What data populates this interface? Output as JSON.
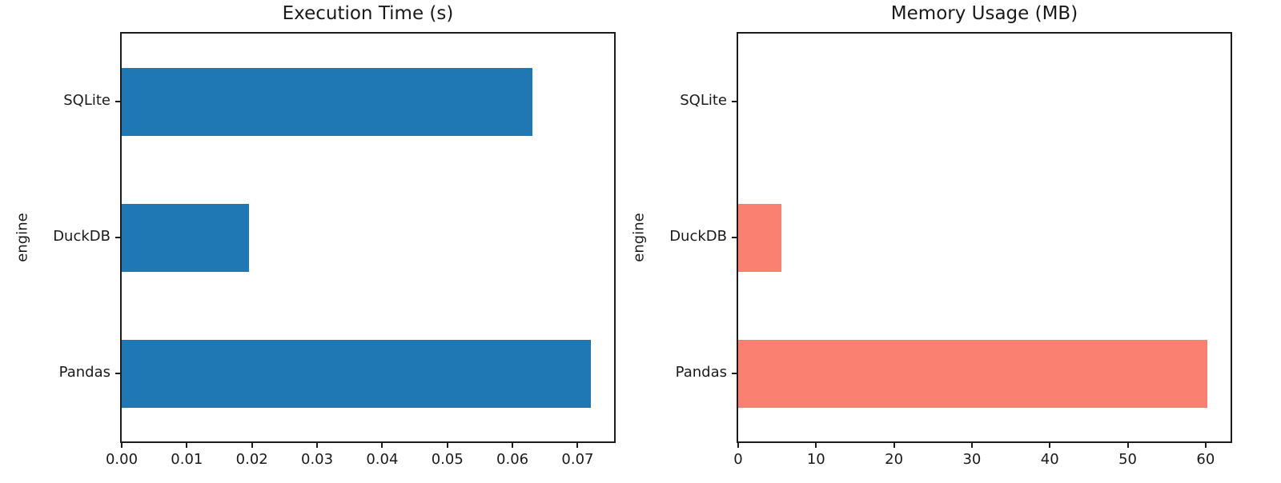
{
  "figure": {
    "background_color": "#ffffff",
    "text_color": "#1a1a1a",
    "spine_color": "#1c1c1c"
  },
  "chart_data": [
    {
      "type": "bar",
      "orientation": "horizontal",
      "title": "Execution Time (s)",
      "xlabel": "",
      "ylabel": "engine",
      "categories": [
        "SQLite",
        "DuckDB",
        "Pandas"
      ],
      "values": [
        0.063,
        0.0196,
        0.072
      ],
      "xlim": [
        0,
        0.0756
      ],
      "xticks": [
        0,
        0.01,
        0.02,
        0.03,
        0.04,
        0.05,
        0.06,
        0.07
      ],
      "xtick_labels": [
        "0.00",
        "0.01",
        "0.02",
        "0.03",
        "0.04",
        "0.05",
        "0.06",
        "0.07"
      ],
      "bar_color": "#1f77b4",
      "grid": false,
      "legend": "none"
    },
    {
      "type": "bar",
      "orientation": "horizontal",
      "title": "Memory Usage (MB)",
      "xlabel": "",
      "ylabel": "engine",
      "categories": [
        "SQLite",
        "DuckDB",
        "Pandas"
      ],
      "values": [
        0,
        5.5,
        60.2
      ],
      "xlim": [
        0,
        63.2
      ],
      "xticks": [
        0,
        10,
        20,
        30,
        40,
        50,
        60
      ],
      "xtick_labels": [
        "0",
        "10",
        "20",
        "30",
        "40",
        "50",
        "60"
      ],
      "bar_color": "#fa8072",
      "grid": false,
      "legend": "none"
    }
  ]
}
